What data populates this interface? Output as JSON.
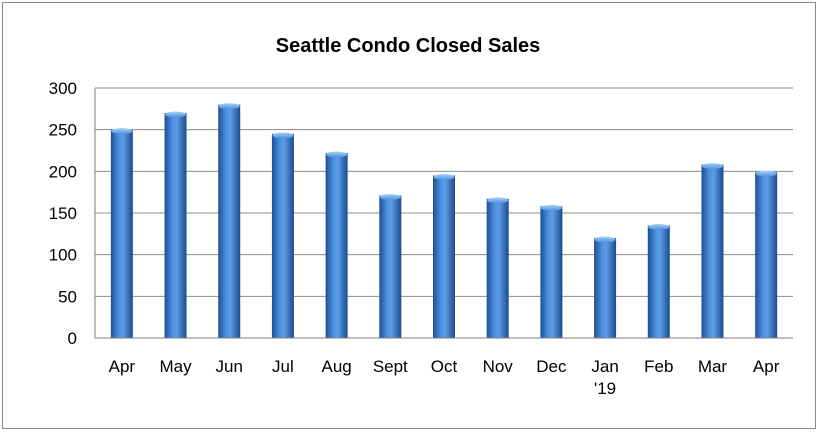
{
  "chart_data": {
    "type": "bar",
    "title": "Seattle Condo Closed Sales",
    "xlabel": "",
    "ylabel": "",
    "categories": [
      "Apr",
      "May",
      "Jun",
      "Jul",
      "Aug",
      "Sept",
      "Oct",
      "Nov",
      "Dec",
      "Jan\n'19",
      "Feb",
      "Mar",
      "Apr"
    ],
    "series": [
      {
        "values": [
          250,
          270,
          280,
          245,
          222,
          171,
          195,
          167,
          158,
          120,
          135,
          208,
          199
        ]
      }
    ],
    "ylim": [
      0,
      300
    ],
    "yticks": [
      0,
      50,
      100,
      150,
      200,
      250,
      300
    ],
    "grid": true,
    "legend": "none",
    "colors": {
      "bar_light": "#8fc1f2",
      "bar_mid": "#3f7fd0",
      "bar_dark": "#1e4f96",
      "gridline": "#8c8c8c",
      "axis": "#7f7f7f"
    }
  }
}
